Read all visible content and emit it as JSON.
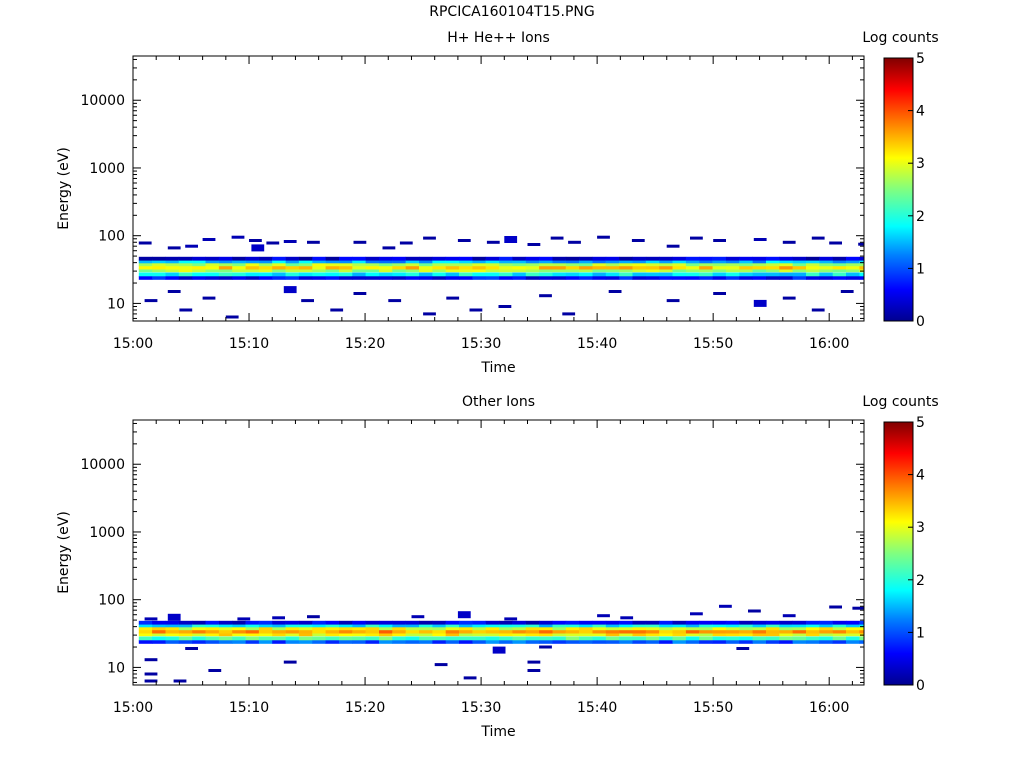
{
  "page_title": "RPCICA160104T15.PNG",
  "chart_data": [
    {
      "type": "heatmap",
      "title": "H+ He++ Ions",
      "xlabel": "Time",
      "ylabel": "Energy (eV)",
      "x_ticks": [
        "15:00",
        "15:10",
        "15:20",
        "15:30",
        "15:40",
        "15:50",
        "16:00"
      ],
      "x_range_minutes": [
        0,
        63
      ],
      "y_scale": "log",
      "y_ticks": [
        10,
        100,
        1000,
        10000
      ],
      "y_tick_labels": [
        "10",
        "100",
        "1000",
        "10000"
      ],
      "y_range": [
        5.5,
        45000
      ],
      "colorbar": {
        "label": "Log counts",
        "ticks": [
          "0",
          "1",
          "2",
          "3",
          "4",
          "5"
        ],
        "range": [
          0,
          5
        ]
      },
      "band": {
        "rows_eV": [
          {
            "energy": 24,
            "log_counts": 0.6
          },
          {
            "energy": 27,
            "log_counts": 1.8
          },
          {
            "energy": 31,
            "log_counts": 2.7
          },
          {
            "energy": 34,
            "log_counts": 3.3
          },
          {
            "energy": 38,
            "log_counts": 2.7
          },
          {
            "energy": 42,
            "log_counts": 1.5
          },
          {
            "energy": 46,
            "log_counts": 0.4
          }
        ],
        "time_range_minutes": [
          0.5,
          63
        ]
      },
      "sparse_points": [
        {
          "t": 0.5,
          "e": 78,
          "v": 0.1
        },
        {
          "t": 3,
          "e": 66,
          "v": 0.1
        },
        {
          "t": 4.5,
          "e": 70,
          "v": 0.2
        },
        {
          "t": 6,
          "e": 88,
          "v": 0.2
        },
        {
          "t": 8.5,
          "e": 95,
          "v": 0.2
        },
        {
          "t": 10,
          "e": 85,
          "v": 0.1
        },
        {
          "t": 10.2,
          "e": 66,
          "v": 0.3
        },
        {
          "t": 11.5,
          "e": 78,
          "v": 0.1
        },
        {
          "t": 13,
          "e": 82,
          "v": 0.2
        },
        {
          "t": 15,
          "e": 80,
          "v": 0.1
        },
        {
          "t": 19,
          "e": 80,
          "v": 0.1
        },
        {
          "t": 21.5,
          "e": 66,
          "v": 0.1
        },
        {
          "t": 23,
          "e": 78,
          "v": 0.1
        },
        {
          "t": 25,
          "e": 92,
          "v": 0.1
        },
        {
          "t": 28,
          "e": 85,
          "v": 0.1
        },
        {
          "t": 30.5,
          "e": 80,
          "v": 0.1
        },
        {
          "t": 32,
          "e": 88,
          "v": 0.3
        },
        {
          "t": 34,
          "e": 74,
          "v": 0.1
        },
        {
          "t": 36,
          "e": 92,
          "v": 0.1
        },
        {
          "t": 37.5,
          "e": 80,
          "v": 0.1
        },
        {
          "t": 40,
          "e": 95,
          "v": 0.1
        },
        {
          "t": 43,
          "e": 85,
          "v": 0.1
        },
        {
          "t": 46,
          "e": 70,
          "v": 0.1
        },
        {
          "t": 48,
          "e": 92,
          "v": 0.1
        },
        {
          "t": 50,
          "e": 85,
          "v": 0.1
        },
        {
          "t": 53.5,
          "e": 88,
          "v": 0.2
        },
        {
          "t": 56,
          "e": 80,
          "v": 0.1
        },
        {
          "t": 58.5,
          "e": 92,
          "v": 0.1
        },
        {
          "t": 60,
          "e": 78,
          "v": 0.1
        },
        {
          "t": 62.5,
          "e": 75,
          "v": 0.1
        },
        {
          "t": 1,
          "e": 11,
          "v": 0.1
        },
        {
          "t": 3,
          "e": 15,
          "v": 0.1
        },
        {
          "t": 4,
          "e": 8,
          "v": 0.1
        },
        {
          "t": 6,
          "e": 12,
          "v": 0.1
        },
        {
          "t": 8,
          "e": 6.3,
          "v": 0.1
        },
        {
          "t": 13,
          "e": 16,
          "v": 0.3
        },
        {
          "t": 14.5,
          "e": 11,
          "v": 0.1
        },
        {
          "t": 17,
          "e": 8,
          "v": 0.1
        },
        {
          "t": 19,
          "e": 14,
          "v": 0.1
        },
        {
          "t": 22,
          "e": 11,
          "v": 0.1
        },
        {
          "t": 25,
          "e": 7,
          "v": 0.1
        },
        {
          "t": 27,
          "e": 12,
          "v": 0.1
        },
        {
          "t": 29,
          "e": 8,
          "v": 0.1
        },
        {
          "t": 31.5,
          "e": 9,
          "v": 0.1
        },
        {
          "t": 35,
          "e": 13,
          "v": 0.1
        },
        {
          "t": 37,
          "e": 7,
          "v": 0.1
        },
        {
          "t": 41,
          "e": 15,
          "v": 0.1
        },
        {
          "t": 46,
          "e": 11,
          "v": 0.1
        },
        {
          "t": 50,
          "e": 14,
          "v": 0.1
        },
        {
          "t": 53.5,
          "e": 10,
          "v": 0.3
        },
        {
          "t": 56,
          "e": 12,
          "v": 0.1
        },
        {
          "t": 58.5,
          "e": 8,
          "v": 0.1
        },
        {
          "t": 61,
          "e": 15,
          "v": 0.1
        }
      ]
    },
    {
      "type": "heatmap",
      "title": "Other Ions",
      "xlabel": "Time",
      "ylabel": "Energy (eV)",
      "x_ticks": [
        "15:00",
        "15:10",
        "15:20",
        "15:30",
        "15:40",
        "15:50",
        "16:00"
      ],
      "x_range_minutes": [
        0,
        63
      ],
      "y_scale": "log",
      "y_ticks": [
        10,
        100,
        1000,
        10000
      ],
      "y_tick_labels": [
        "10",
        "100",
        "1000",
        "10000"
      ],
      "y_range": [
        5.5,
        45000
      ],
      "colorbar": {
        "label": "Log counts",
        "ticks": [
          "0",
          "1",
          "2",
          "3",
          "4",
          "5"
        ],
        "range": [
          0,
          5
        ]
      },
      "band": {
        "rows_eV": [
          {
            "energy": 24,
            "log_counts": 1.0
          },
          {
            "energy": 27,
            "log_counts": 2.2
          },
          {
            "energy": 31,
            "log_counts": 3.1
          },
          {
            "energy": 34,
            "log_counts": 3.6
          },
          {
            "energy": 38,
            "log_counts": 3.0
          },
          {
            "energy": 42,
            "log_counts": 1.8
          },
          {
            "energy": 46,
            "log_counts": 0.5
          }
        ],
        "time_range_minutes": [
          0.5,
          63
        ]
      },
      "sparse_points": [
        {
          "t": 1,
          "e": 52,
          "v": 0.2
        },
        {
          "t": 3,
          "e": 55,
          "v": 0.3
        },
        {
          "t": 9,
          "e": 52,
          "v": 0.2
        },
        {
          "t": 12,
          "e": 54,
          "v": 0.2
        },
        {
          "t": 15,
          "e": 56,
          "v": 0.1
        },
        {
          "t": 24,
          "e": 56,
          "v": 0.2
        },
        {
          "t": 28,
          "e": 60,
          "v": 0.3
        },
        {
          "t": 32,
          "e": 52,
          "v": 0.2
        },
        {
          "t": 40,
          "e": 58,
          "v": 0.2
        },
        {
          "t": 42,
          "e": 54,
          "v": 0.2
        },
        {
          "t": 48,
          "e": 62,
          "v": 0.2
        },
        {
          "t": 50.5,
          "e": 80,
          "v": 0.2
        },
        {
          "t": 53,
          "e": 68,
          "v": 0.1
        },
        {
          "t": 56,
          "e": 58,
          "v": 0.2
        },
        {
          "t": 60,
          "e": 78,
          "v": 0.1
        },
        {
          "t": 62,
          "e": 75,
          "v": 0.1
        },
        {
          "t": 1,
          "e": 13,
          "v": 0.1
        },
        {
          "t": 1,
          "e": 8,
          "v": 0.1
        },
        {
          "t": 1,
          "e": 6.3,
          "v": 0.1
        },
        {
          "t": 3.5,
          "e": 6.3,
          "v": 0.1
        },
        {
          "t": 6.5,
          "e": 9,
          "v": 0.1
        },
        {
          "t": 13,
          "e": 12,
          "v": 0.1
        },
        {
          "t": 26,
          "e": 11,
          "v": 0.1
        },
        {
          "t": 28.5,
          "e": 7,
          "v": 0.1
        },
        {
          "t": 34,
          "e": 12,
          "v": 0.1
        },
        {
          "t": 34,
          "e": 9,
          "v": 0.1
        },
        {
          "t": 4.5,
          "e": 19,
          "v": 0.1
        },
        {
          "t": 31,
          "e": 18,
          "v": 0.3
        },
        {
          "t": 35,
          "e": 20,
          "v": 0.1
        },
        {
          "t": 52,
          "e": 19,
          "v": 0.1
        }
      ]
    }
  ]
}
